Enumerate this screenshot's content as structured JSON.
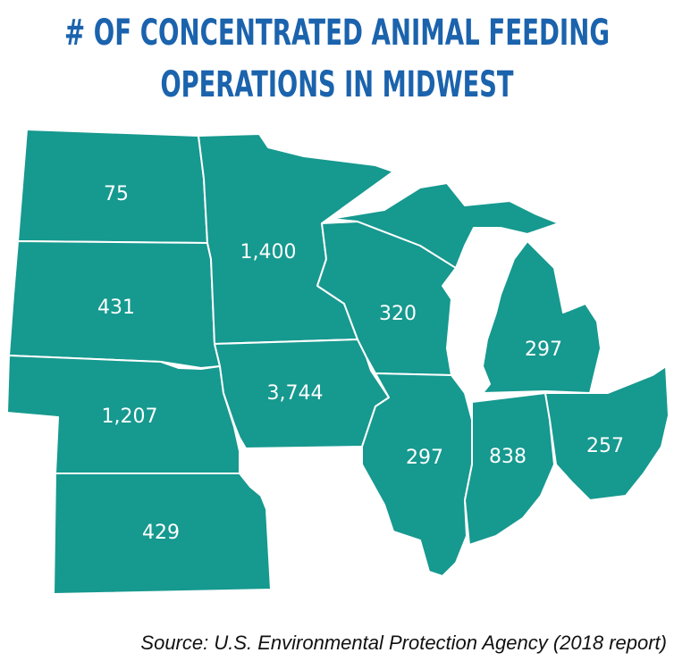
{
  "title": [
    "# OF CONCENTRATED ANIMAL FEEDING",
    "OPERATIONS IN MIDWEST"
  ],
  "states": [
    {
      "label": "75"
    },
    {
      "label": "431"
    },
    {
      "label": "1,207"
    },
    {
      "label": "429"
    },
    {
      "label": "1,400"
    },
    {
      "label": "3,744"
    },
    {
      "label": "320"
    },
    {
      "label": "297"
    },
    {
      "label": "838"
    },
    {
      "label": "257"
    },
    {
      "label": "297"
    }
  ],
  "source": "Source: U.S. Environmental Protection Agency (2018 report)"
}
